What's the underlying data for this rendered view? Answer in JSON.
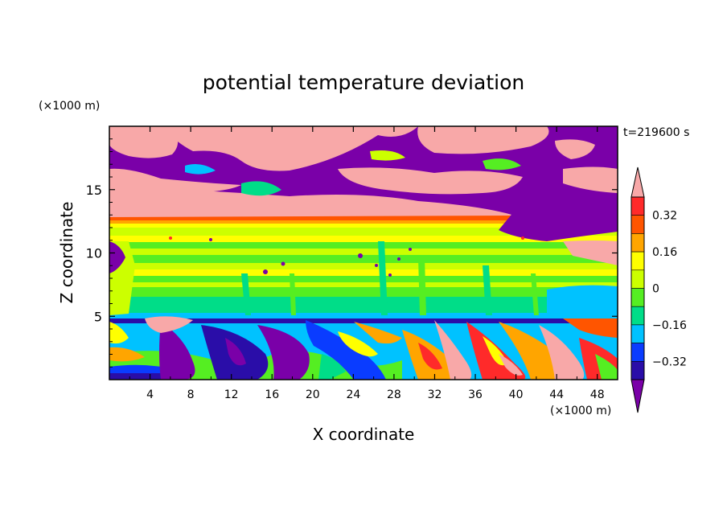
{
  "chart_data": {
    "type": "heatmap",
    "title": "potential temperature deviation",
    "xlabel": "X coordinate",
    "ylabel": "Z coordinate",
    "x_unit": "(×1000 m)",
    "y_unit": "(×1000 m)",
    "time_label": "t=219600 s",
    "xlim": [
      0,
      50
    ],
    "ylim": [
      0,
      20
    ],
    "x_ticks": [
      4,
      8,
      12,
      16,
      20,
      24,
      28,
      32,
      36,
      40,
      44,
      48
    ],
    "y_ticks": [
      5,
      10,
      15
    ],
    "colorbar": {
      "extend": "both",
      "levels": [
        -0.4,
        -0.32,
        -0.24,
        -0.16,
        -0.08,
        0,
        0.08,
        0.16,
        0.24,
        0.32,
        0.4
      ],
      "tick_labels": [
        "0.32",
        "0.16",
        "0",
        "−0.16",
        "−0.32"
      ],
      "tick_values": [
        0.32,
        0.16,
        0,
        -0.16,
        -0.32
      ],
      "colors_low_to_high": [
        "#7a00a8",
        "#2a0da8",
        "#0a3cff",
        "#00c2ff",
        "#00dd88",
        "#55ee22",
        "#ccff00",
        "#ffff00",
        "#ffa500",
        "#ff5500",
        "#ff2a2a",
        "#f8a8a8"
      ]
    },
    "bands": [
      {
        "z": [
          0,
          1.5
        ],
        "value": -0.28,
        "note": ""
      },
      {
        "z": [
          12.3,
          13
        ],
        "value": 0.4
      },
      {
        "z": [
          13,
          20
        ],
        "value": -0.4
      }
    ]
  }
}
